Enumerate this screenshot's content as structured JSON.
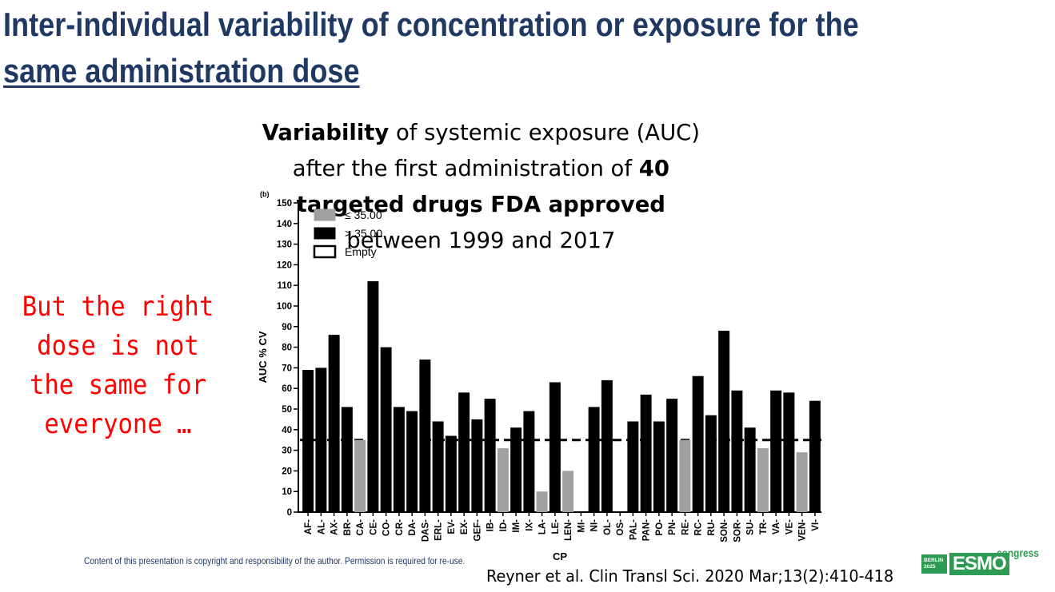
{
  "slide": {
    "title_line1": "Inter-individual variability of concentration or exposure for the",
    "title_line2": "same administration dose",
    "subtitle_bold1": "Variability",
    "subtitle_text1": " of systemic exposure (AUC) after the first administration of ",
    "subtitle_bold2": "40 targeted drugs FDA approved",
    "subtitle_text2": "between 1999 and 2017",
    "side_note": "But the right dose is not the same for everyone …",
    "copyright": "Content of this presentation is copyright and responsibility of the author. Permission is required for re-use.",
    "reference": "Reyner et al. Clin Transl Sci. 2020 Mar;13(2):410-418",
    "logo": {
      "badge": "BERLIN 2025",
      "wordmark": "ESMO",
      "suffix": "congress"
    }
  },
  "colors": {
    "title": "#1f3864",
    "side_note": "#ff0000",
    "bar_high": "#000000",
    "bar_low": "#a0a0a0",
    "brand": "#2e9b55"
  },
  "chart_data": {
    "type": "bar",
    "panel_label": "(b)",
    "xlabel": "CP",
    "ylabel": "AUC % CV",
    "ylim": [
      0,
      150
    ],
    "yticks": [
      0,
      10,
      20,
      30,
      40,
      50,
      60,
      70,
      80,
      90,
      100,
      110,
      120,
      130,
      140,
      150
    ],
    "threshold": 35,
    "legend": [
      "≤ 35.00",
      "> 35.00",
      "Empty"
    ],
    "categories": [
      "AF",
      "AL",
      "AX",
      "BR",
      "CA",
      "CE",
      "CO",
      "CR",
      "DA",
      "DAS",
      "ERL",
      "EV",
      "EX",
      "GEF",
      "IB",
      "ID",
      "IM",
      "IX",
      "LA",
      "LE",
      "LEN",
      "MI",
      "NI",
      "OL",
      "OS",
      "PAL",
      "PAN",
      "PO",
      "PN",
      "RE",
      "RC",
      "RU",
      "SON",
      "SOR",
      "SU",
      "TR",
      "VA",
      "VE",
      "VEN",
      "VI"
    ],
    "values": [
      69,
      70,
      86,
      51,
      35,
      112,
      80,
      51,
      49,
      74,
      44,
      37,
      58,
      45,
      55,
      31,
      41,
      49,
      10,
      63,
      20,
      0,
      51,
      64,
      0,
      44,
      57,
      44,
      55,
      35,
      66,
      47,
      88,
      59,
      41,
      31,
      59,
      58,
      29,
      54
    ],
    "groups": [
      "high",
      "high",
      "high",
      "high",
      "low",
      "high",
      "high",
      "high",
      "high",
      "high",
      "high",
      "high",
      "high",
      "high",
      "high",
      "low",
      "high",
      "high",
      "low",
      "high",
      "low",
      "empty",
      "high",
      "high",
      "empty",
      "high",
      "high",
      "high",
      "high",
      "low",
      "high",
      "high",
      "high",
      "high",
      "high",
      "low",
      "high",
      "high",
      "low",
      "high"
    ]
  }
}
